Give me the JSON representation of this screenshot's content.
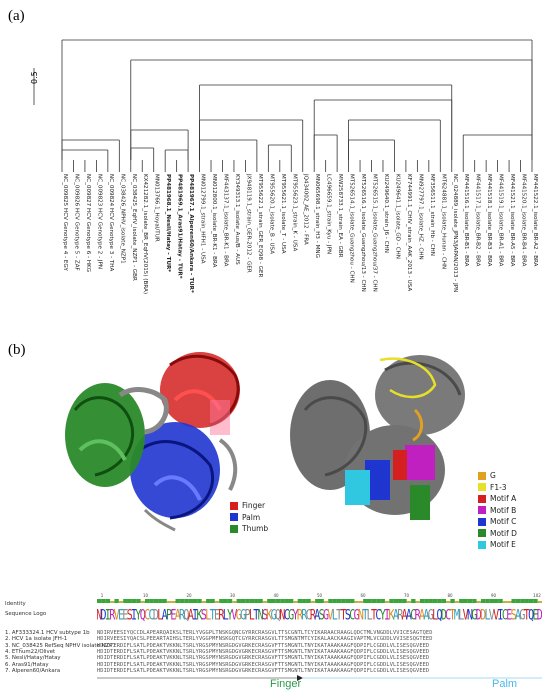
{
  "panel_a_label": "(a)",
  "panel_b_label": "(b)",
  "scale_label": "0.5",
  "tree_tips": [
    "NC_009825 HCV Genotype 4 - EGY",
    "NC_009826 HCV Genotype 5 - ZAF",
    "NC_009827 HCV Genotype 6 - HKG",
    "NC_009823 HCV Genotype 2 - JPN",
    "NC_009824 HCV Genotype 3 - THA",
    "NC_038426_NPHV_isolate_NZP1",
    "NC_038425_EqHV_isolate_NZP1 - GBR",
    "KX421282.1_isolate_BR_EqHV(2015) (BRA)",
    "MN013766.1_Hoyal/TUR",
    "PP481968.1_Nesli/Hatay - TUR*",
    "PP481969.1_Aras91/Hatay - TUR*",
    "PP481967.1_Alperen60/Ankara - TUR*",
    "MN012799.1_strain_HFH1 - USA",
    "MN012800.1_isolate_BR-K1 - BRA",
    "MF443137.1_isolate_BR-K1 - BRA",
    "KY349313.1_isolate_Aus/B - AUS",
    "JX948119.1_strain_GER-2012 - GER",
    "MT955622.1_strain_GER_EQ98 - GER",
    "MT955620.1_isolate_B - USA",
    "MT955621.1_isolate_T - USA",
    "MT955623.1_strain_K - USA",
    "JQ434002_AE_2012 - FRA",
    "MN065698.1_strain_H3 - MNG",
    "LC496659.1_strain_Kyu - JPN",
    "MW258733.1_strain_EA - GBR",
    "MT526514.1_isolate_Guangzhou - CHN",
    "MT526516.1_isolate_Guangzhou/13 - CHN",
    "MT526515.1_isolate_Guangzhou/37 - CHN",
    "KU249640.1_strain_J6 - CHN",
    "KU249641.1_isolate_GD - CHN",
    "KF744991.1_CHIV_strain_AAK_2013 - USA",
    "MN927797.1_isolate_HZ - CHN",
    "MF356511.1_strain_Hb - CHN",
    "MT624881.1_isolate_Hunan - CHN",
    "NC_024889_isolate_JPN3/JAPAN/2013 - JPN",
    "MF441516.1_isolate_BR-B1 - BRA",
    "MF441517.1_isolate_BR-B2 - BRA",
    "MF441518.1_isolate_BR-B3 - BRA",
    "MF441519.1_isolate_BR-A1 - BRA",
    "MF441521.1_isolate_BR-A5 - BRA",
    "MF441520.1_isolate_BR-B4 - BRA",
    "MF441522.1_isolate_BR-A2 - BRA"
  ],
  "bold_tips": [
    9,
    10,
    11
  ],
  "legend_left": [
    {
      "label": "Finger",
      "color": "#d42020"
    },
    {
      "label": "Palm",
      "color": "#1f35d0"
    },
    {
      "label": "Thumb",
      "color": "#2a8a2a"
    }
  ],
  "legend_right": [
    {
      "label": "G",
      "color": "#e0a020"
    },
    {
      "label": "F1-3",
      "color": "#e6e02a"
    },
    {
      "label": "Motif A",
      "color": "#d42020"
    },
    {
      "label": "Motif B",
      "color": "#c020c0"
    },
    {
      "label": "Motif C",
      "color": "#1f35d0"
    },
    {
      "label": "Motif D",
      "color": "#2a8a2a"
    },
    {
      "label": "Motif E",
      "color": "#30c8e0"
    }
  ],
  "alignment": {
    "identity_label": "Identity",
    "logo_label": "Sequence Logo",
    "ticks": [
      "1",
      "10",
      "20",
      "30",
      "40",
      "50",
      "60",
      "70",
      "80",
      "90",
      "102"
    ],
    "rows": [
      {
        "name": "1. AF333324.1 HCV subtype 1b",
        "seq": "NDIRVEESIYQCCDLAPEARQAIKSLTERLYVGGPLTNSKGQNCGYRRCRASGVLTTSCGNTLTCYIKARAACRAAGLQDCTMLVNGDDLVVICESAGTQED"
      },
      {
        "name": "2. HCV 1a isolate JFH-1",
        "seq": "HDIRVEESIYQACSLPEEARTAIHSLTERLYVGGPMFNSKGQTCGYRRCRASGVLTTSMGNTMTCYIKALAACKAAGIVAPTMLVCGDDLVVISESQGTEED"
      },
      {
        "name": "3. NC_038425 RefSeq NPHV isolate NZP1",
        "seq": "HDIDTERDIFLSATLPDEAKTVKKNLTSRLYRGSPMYNSRGDGVGRKECRASGVFTTSMGNTLTNYIKATAAAKAAGFQDPIFLCGDDLVLISESQGVEED"
      },
      {
        "name": "4. EThum22/Olivet",
        "seq": "HDIDTERDIFLSATLPDEAKTVKKNLTSRLYRGSPMYNSRGDGVGRKECRASGVFTTSMGNTLTNYIKATAAAKAAGFQDPIFLCGDDLVLISESQGVEED"
      },
      {
        "name": "5. Nesli/Hatay/Hatay",
        "seq": "HDIDTERDIFLSATLPDEAKTVKKNLTSRLYRGSPMYNSRGDGVGRKECRASGVFTTSMGNTLTNYIKATAAAKAAGFQDPIFLCGDDLVLISESQGVEED"
      },
      {
        "name": "6. Aras91/Hatay",
        "seq": "HDIDTERDIFLSATLPDEAKTVKKNLTSRLYRGSPMYNSRGDGVGRKECRASGVFTTSMGNTLTNYIKATAAAKAAGFQDPIFLCGDDLVLISESQGVEED"
      },
      {
        "name": "7. Alperen60/Ankara",
        "seq": "HDIDTERDIFLSATLPDEAKTVKKNLTSRLYRGSPMYNSRGDGVGRKECRASGVFTTSMGNTLTNYIKATAAAKAAGFQDPIFLCGDDLVLISESQGVEED"
      }
    ],
    "region_finger": "Finger",
    "region_palm": "Palm"
  }
}
